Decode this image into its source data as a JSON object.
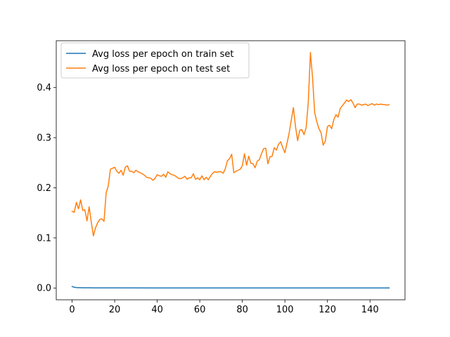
{
  "chart_data": {
    "type": "line",
    "title": "",
    "xlabel": "",
    "ylabel": "",
    "xlim": [
      -7.45,
      156.45
    ],
    "ylim": [
      -0.0235,
      0.4935
    ],
    "xticks": [
      0,
      20,
      40,
      60,
      80,
      100,
      120,
      140
    ],
    "yticks": [
      0.0,
      0.1,
      0.2,
      0.3,
      0.4
    ],
    "ytick_labels": [
      "0.0",
      "0.1",
      "0.2",
      "0.3",
      "0.4"
    ],
    "grid": false,
    "legend_position": "top-left",
    "series": [
      {
        "name": "Avg loss per epoch on train set",
        "color": "#1f77b4",
        "x": [
          0,
          1,
          2,
          5,
          10,
          20,
          40,
          60,
          80,
          100,
          120,
          140,
          149
        ],
        "y": [
          0.003,
          0.0015,
          0.0008,
          0.0005,
          0.0004,
          0.0003,
          0.0002,
          0.0002,
          0.0002,
          0.0002,
          0.0002,
          0.0002,
          0.0002
        ]
      },
      {
        "name": "Avg loss per epoch on test set",
        "color": "#ff7f0e",
        "x": [
          0,
          1,
          2,
          3,
          4,
          5,
          6,
          7,
          8,
          9,
          10,
          11,
          12,
          13,
          14,
          15,
          16,
          17,
          18,
          19,
          20,
          21,
          22,
          23,
          24,
          25,
          26,
          27,
          28,
          29,
          30,
          31,
          32,
          33,
          34,
          35,
          36,
          37,
          38,
          39,
          40,
          41,
          42,
          43,
          44,
          45,
          46,
          47,
          48,
          49,
          50,
          51,
          52,
          53,
          54,
          55,
          56,
          57,
          58,
          59,
          60,
          61,
          62,
          63,
          64,
          65,
          66,
          67,
          68,
          69,
          70,
          71,
          72,
          73,
          74,
          75,
          76,
          77,
          78,
          79,
          80,
          81,
          82,
          83,
          84,
          85,
          86,
          87,
          88,
          89,
          90,
          91,
          92,
          93,
          94,
          95,
          96,
          97,
          98,
          99,
          100,
          101,
          102,
          103,
          104,
          105,
          106,
          107,
          108,
          109,
          110,
          111,
          112,
          113,
          114,
          115,
          116,
          117,
          118,
          119,
          120,
          121,
          122,
          123,
          124,
          125,
          126,
          127,
          128,
          129,
          130,
          131,
          132,
          133,
          134,
          135,
          136,
          137,
          138,
          139,
          140,
          141,
          142,
          143,
          144,
          145,
          146,
          147,
          148,
          149
        ],
        "y": [
          0.153,
          0.151,
          0.171,
          0.158,
          0.176,
          0.155,
          0.156,
          0.134,
          0.162,
          0.132,
          0.104,
          0.12,
          0.13,
          0.137,
          0.138,
          0.133,
          0.19,
          0.204,
          0.237,
          0.239,
          0.241,
          0.233,
          0.229,
          0.235,
          0.225,
          0.241,
          0.244,
          0.233,
          0.233,
          0.23,
          0.235,
          0.232,
          0.23,
          0.228,
          0.225,
          0.221,
          0.22,
          0.219,
          0.215,
          0.219,
          0.226,
          0.224,
          0.223,
          0.227,
          0.221,
          0.232,
          0.228,
          0.226,
          0.225,
          0.222,
          0.219,
          0.218,
          0.22,
          0.223,
          0.217,
          0.22,
          0.22,
          0.228,
          0.217,
          0.22,
          0.216,
          0.224,
          0.216,
          0.221,
          0.216,
          0.223,
          0.229,
          0.232,
          0.231,
          0.232,
          0.232,
          0.229,
          0.238,
          0.254,
          0.258,
          0.267,
          0.23,
          0.233,
          0.235,
          0.237,
          0.244,
          0.268,
          0.245,
          0.263,
          0.249,
          0.248,
          0.24,
          0.253,
          0.256,
          0.268,
          0.278,
          0.279,
          0.248,
          0.262,
          0.263,
          0.28,
          0.275,
          0.287,
          0.292,
          0.28,
          0.27,
          0.289,
          0.309,
          0.335,
          0.36,
          0.322,
          0.294,
          0.315,
          0.316,
          0.306,
          0.32,
          0.371,
          0.47,
          0.42,
          0.35,
          0.332,
          0.318,
          0.31,
          0.285,
          0.293,
          0.322,
          0.325,
          0.318,
          0.336,
          0.346,
          0.341,
          0.358,
          0.364,
          0.369,
          0.375,
          0.372,
          0.376,
          0.369,
          0.36,
          0.367,
          0.367,
          0.365,
          0.366,
          0.367,
          0.364,
          0.366,
          0.368,
          0.365,
          0.367,
          0.366,
          0.367,
          0.366,
          0.366,
          0.365,
          0.366
        ]
      }
    ]
  }
}
